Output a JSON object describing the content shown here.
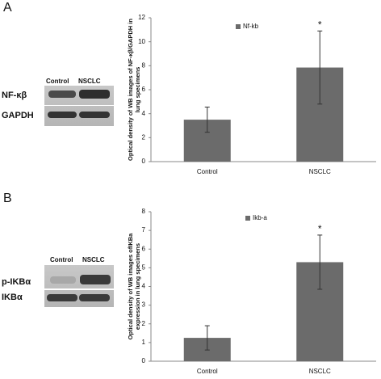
{
  "panels": [
    {
      "label": "A",
      "lanes": [
        "Control",
        "NSCLC"
      ],
      "rows": [
        "NF-κβ",
        "GAPDH"
      ]
    },
    {
      "label": "B",
      "lanes": [
        "Control",
        "NSCLC"
      ],
      "rows": [
        "p-IKBα",
        "IKBα"
      ]
    }
  ],
  "chart_data": [
    {
      "type": "bar",
      "categories": [
        "Control",
        "NSCLC"
      ],
      "series": [
        {
          "name": "Nf-kb",
          "color": "#6b6b6b",
          "values": [
            3.5,
            7.85
          ],
          "errors": [
            1.05,
            3.05
          ]
        }
      ],
      "ylabel": [
        "Optical density of WB images of NF-κβ/GAPDH in",
        "lung specimens"
      ],
      "ylim": [
        0,
        12
      ],
      "yticks": [
        0,
        2,
        4,
        6,
        8,
        10,
        12
      ],
      "annotation": "*",
      "annotation_category": "NSCLC"
    },
    {
      "type": "bar",
      "categories": [
        "Control",
        "NSCLC"
      ],
      "series": [
        {
          "name": "Ikb-a",
          "color": "#6b6b6b",
          "values": [
            1.25,
            5.3
          ],
          "errors": [
            0.65,
            1.45
          ]
        }
      ],
      "ylabel": [
        "Optical density of WB images ofIKBa",
        "expression in lung specimens"
      ],
      "ylim": [
        0,
        8
      ],
      "yticks": [
        0,
        1,
        2,
        3,
        4,
        5,
        6,
        7,
        8
      ],
      "annotation": "*",
      "annotation_category": "NSCLC"
    }
  ]
}
